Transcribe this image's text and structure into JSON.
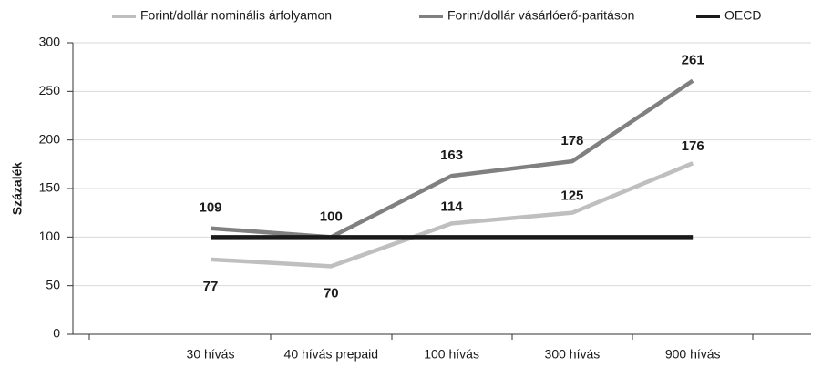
{
  "chart_data": {
    "type": "line",
    "y_label": "Százalék",
    "categories": [
      "30 hívás",
      "40 hívás prepaid",
      "100 hívás",
      "300 hívás",
      "900 hívás"
    ],
    "series": [
      {
        "name": "Forint/dollár nominális árfolyamon",
        "color": "#bfbfbf",
        "values": [
          77,
          70,
          114,
          125,
          176
        ]
      },
      {
        "name": "Forint/dollár vásárlóerő-paritáson",
        "color": "#808080",
        "values": [
          109,
          100,
          163,
          178,
          261
        ]
      },
      {
        "name": "OECD",
        "color": "#1a1a1a",
        "values": [
          100,
          100,
          100,
          100,
          100
        ]
      }
    ],
    "ylim": [
      0,
      300
    ],
    "yticks": [
      0,
      50,
      100,
      150,
      200,
      250,
      300
    ],
    "grid": true,
    "legend": "top"
  }
}
